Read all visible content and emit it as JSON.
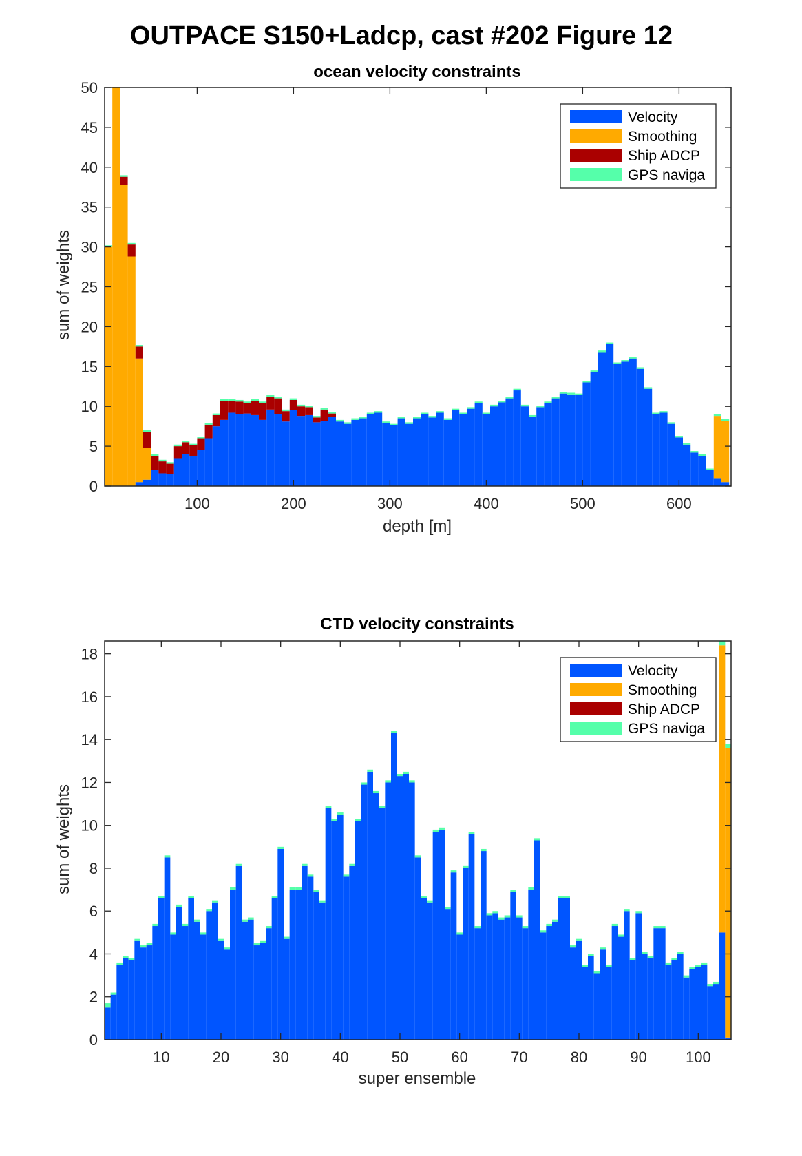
{
  "figure_title": "OUTPACE S150+Ladcp, cast #202  Figure 12",
  "chart_data": [
    {
      "type": "bar",
      "stacked": true,
      "title": "ocean velocity constraints",
      "xlabel": "depth [m]",
      "ylabel": "sum of weights",
      "xlim": [
        4,
        654
      ],
      "ylim": [
        0,
        50
      ],
      "xticks": [
        100,
        200,
        300,
        400,
        500,
        600
      ],
      "yticks": [
        0,
        5,
        10,
        15,
        20,
        25,
        30,
        35,
        40,
        45,
        50
      ],
      "legend": {
        "placement": "top-right",
        "entries": [
          "Velocity",
          "Smoothing",
          "Ship ADCP",
          "GPS naviga"
        ]
      },
      "colors": {
        "Velocity": "#0055ff",
        "Smoothing": "#ffaa00",
        "Ship ADCP": "#aa0000",
        "GPS naviga": "#55ffaa"
      },
      "bin_width": 8,
      "x": [
        8,
        16,
        24,
        32,
        40,
        48,
        56,
        64,
        72,
        80,
        88,
        96,
        104,
        112,
        120,
        128,
        136,
        144,
        152,
        160,
        168,
        176,
        184,
        192,
        200,
        208,
        216,
        224,
        232,
        240,
        248,
        256,
        264,
        272,
        280,
        288,
        296,
        304,
        312,
        320,
        328,
        336,
        344,
        352,
        360,
        368,
        376,
        384,
        392,
        400,
        408,
        416,
        424,
        432,
        440,
        448,
        456,
        464,
        472,
        480,
        488,
        496,
        504,
        512,
        520,
        528,
        536,
        544,
        552,
        560,
        568,
        576,
        584,
        592,
        600,
        608,
        616,
        624,
        632,
        640,
        648
      ],
      "series": [
        {
          "name": "Velocity",
          "values": [
            0,
            0,
            0,
            0,
            0.5,
            0.8,
            2.0,
            1.6,
            1.5,
            3.5,
            4.0,
            3.8,
            4.5,
            6.0,
            7.5,
            8.3,
            9.2,
            9.0,
            9.1,
            8.9,
            8.3,
            9.6,
            9.0,
            8.1,
            9.5,
            8.8,
            8.9,
            8.0,
            8.2,
            8.7,
            8.1,
            7.8,
            8.3,
            8.5,
            9.0,
            9.2,
            7.9,
            7.6,
            8.5,
            7.8,
            8.5,
            9.0,
            8.6,
            9.2,
            8.3,
            9.5,
            9.0,
            9.7,
            10.4,
            9.0,
            10.0,
            10.5,
            11.0,
            12.0,
            10.0,
            8.7,
            9.9,
            10.4,
            11.0,
            11.6,
            11.5,
            11.4,
            13.0,
            14.3,
            16.8,
            17.8,
            15.3,
            15.6,
            16.0,
            14.7,
            12.2,
            9.0,
            9.2,
            7.8,
            6.1,
            5.2,
            4.2,
            3.8,
            2.0,
            1.0,
            0.5
          ]
        },
        {
          "name": "Smoothing",
          "values": [
            30.0,
            50.0,
            37.8,
            28.8,
            15.5,
            4.0,
            0,
            0,
            0,
            0,
            0,
            0,
            0,
            0,
            0,
            0,
            0,
            0,
            0,
            0,
            0,
            0,
            0,
            0,
            0,
            0,
            0,
            0,
            0,
            0,
            0,
            0,
            0,
            0,
            0,
            0,
            0,
            0,
            0,
            0,
            0,
            0,
            0,
            0,
            0,
            0,
            0,
            0,
            0,
            0,
            0,
            0,
            0,
            0,
            0,
            0,
            0,
            0,
            0,
            0,
            0,
            0,
            0,
            0,
            0,
            0,
            0,
            0,
            0,
            0,
            0,
            0,
            0,
            0,
            0,
            0,
            0,
            0,
            0,
            7.8,
            7.7
          ]
        },
        {
          "name": "Ship ADCP",
          "values": [
            0,
            0,
            1.0,
            1.5,
            1.5,
            2.0,
            1.8,
            1.5,
            1.3,
            1.5,
            1.5,
            1.3,
            1.5,
            1.7,
            1.4,
            2.4,
            1.5,
            1.6,
            1.3,
            1.8,
            2.1,
            1.6,
            2.0,
            1.3,
            1.3,
            1.2,
            1.0,
            0.6,
            1.4,
            0.4,
            0,
            0,
            0,
            0,
            0,
            0,
            0,
            0,
            0,
            0,
            0,
            0,
            0,
            0,
            0,
            0,
            0,
            0,
            0,
            0,
            0,
            0,
            0,
            0,
            0,
            0,
            0,
            0,
            0,
            0,
            0,
            0,
            0,
            0,
            0,
            0,
            0,
            0,
            0,
            0,
            0,
            0,
            0,
            0,
            0,
            0,
            0,
            0,
            0,
            0,
            0
          ]
        },
        {
          "name": "GPS naviga",
          "values": [
            0.2,
            0.2,
            0.2,
            0.2,
            0.2,
            0.2,
            0.2,
            0.2,
            0.2,
            0.2,
            0.2,
            0.2,
            0.2,
            0.2,
            0.2,
            0.2,
            0.2,
            0.2,
            0.2,
            0.2,
            0.2,
            0.2,
            0.2,
            0.2,
            0.2,
            0.2,
            0.2,
            0.2,
            0.2,
            0.2,
            0.2,
            0.2,
            0.2,
            0.2,
            0.2,
            0.2,
            0.2,
            0.2,
            0.2,
            0.2,
            0.2,
            0.2,
            0.2,
            0.2,
            0.2,
            0.2,
            0.2,
            0.2,
            0.2,
            0.2,
            0.2,
            0.2,
            0.2,
            0.2,
            0.2,
            0.2,
            0.2,
            0.2,
            0.2,
            0.2,
            0.2,
            0.2,
            0.2,
            0.2,
            0.2,
            0.2,
            0.2,
            0.2,
            0.2,
            0.2,
            0.2,
            0.2,
            0.2,
            0.2,
            0.2,
            0.2,
            0.2,
            0.2,
            0.2,
            0.2,
            0.2
          ]
        }
      ]
    },
    {
      "type": "bar",
      "stacked": true,
      "title": "CTD velocity constraints",
      "xlabel": "super ensemble",
      "ylabel": "sum of weights",
      "xlim": [
        0.5,
        105.5
      ],
      "ylim": [
        0,
        18.6
      ],
      "xticks": [
        10,
        20,
        30,
        40,
        50,
        60,
        70,
        80,
        90,
        100
      ],
      "yticks": [
        0,
        2,
        4,
        6,
        8,
        10,
        12,
        14,
        16,
        18
      ],
      "legend": {
        "placement": "top-right",
        "entries": [
          "Velocity",
          "Smoothing",
          "Ship ADCP",
          "GPS naviga"
        ]
      },
      "colors": {
        "Velocity": "#0055ff",
        "Smoothing": "#ffaa00",
        "Ship ADCP": "#aa0000",
        "GPS naviga": "#55ffaa"
      },
      "bin_width": 1,
      "x": [
        1,
        2,
        3,
        4,
        5,
        6,
        7,
        8,
        9,
        10,
        11,
        12,
        13,
        14,
        15,
        16,
        17,
        18,
        19,
        20,
        21,
        22,
        23,
        24,
        25,
        26,
        27,
        28,
        29,
        30,
        31,
        32,
        33,
        34,
        35,
        36,
        37,
        38,
        39,
        40,
        41,
        42,
        43,
        44,
        45,
        46,
        47,
        48,
        49,
        50,
        51,
        52,
        53,
        54,
        55,
        56,
        57,
        58,
        59,
        60,
        61,
        62,
        63,
        64,
        65,
        66,
        67,
        68,
        69,
        70,
        71,
        72,
        73,
        74,
        75,
        76,
        77,
        78,
        79,
        80,
        81,
        82,
        83,
        84,
        85,
        86,
        87,
        88,
        89,
        90,
        91,
        92,
        93,
        94,
        95,
        96,
        97,
        98,
        99,
        100,
        101,
        102,
        103,
        104,
        105
      ],
      "series": [
        {
          "name": "Velocity",
          "values": [
            1.5,
            2.1,
            3.5,
            3.8,
            3.7,
            4.6,
            4.3,
            4.4,
            5.3,
            6.6,
            8.5,
            4.9,
            6.2,
            5.3,
            6.6,
            5.5,
            4.9,
            6.0,
            6.4,
            4.6,
            4.2,
            7.0,
            8.1,
            5.5,
            5.6,
            4.4,
            4.5,
            5.2,
            6.6,
            8.9,
            4.7,
            7.0,
            7.0,
            8.1,
            7.6,
            6.9,
            6.4,
            10.8,
            10.2,
            10.5,
            7.6,
            8.1,
            10.2,
            11.9,
            12.5,
            11.5,
            10.8,
            12.0,
            14.3,
            12.3,
            12.4,
            12.0,
            8.5,
            6.6,
            6.4,
            9.7,
            9.8,
            6.1,
            7.8,
            4.9,
            8.0,
            9.6,
            5.2,
            8.8,
            5.8,
            5.9,
            5.6,
            5.7,
            6.9,
            5.7,
            5.2,
            7.0,
            9.3,
            5.0,
            5.3,
            5.5,
            6.6,
            6.6,
            4.3,
            4.6,
            3.4,
            3.9,
            3.1,
            4.2,
            3.4,
            5.3,
            4.8,
            6.0,
            3.7,
            5.9,
            4.0,
            3.8,
            5.2,
            5.2,
            3.5,
            3.7,
            4.0,
            2.9,
            3.3,
            3.4,
            3.5,
            2.5,
            2.6,
            5.0,
            0.1
          ]
        },
        {
          "name": "Smoothing",
          "values": [
            0,
            0,
            0,
            0,
            0,
            0,
            0,
            0,
            0,
            0,
            0,
            0,
            0,
            0,
            0,
            0,
            0,
            0,
            0,
            0,
            0,
            0,
            0,
            0,
            0,
            0,
            0,
            0,
            0,
            0,
            0,
            0,
            0,
            0,
            0,
            0,
            0,
            0,
            0,
            0,
            0,
            0,
            0,
            0,
            0,
            0,
            0,
            0,
            0,
            0,
            0,
            0,
            0,
            0,
            0,
            0,
            0,
            0,
            0,
            0,
            0,
            0,
            0,
            0,
            0,
            0,
            0,
            0,
            0,
            0,
            0,
            0,
            0,
            0,
            0,
            0,
            0,
            0,
            0,
            0,
            0,
            0,
            0,
            0,
            0,
            0,
            0,
            0,
            0,
            0,
            0,
            0,
            0,
            0,
            0,
            0,
            0,
            0,
            0,
            0,
            0,
            0,
            0,
            13.4,
            13.5
          ]
        },
        {
          "name": "Ship ADCP",
          "values": [
            0,
            0,
            0,
            0,
            0,
            0,
            0,
            0,
            0,
            0,
            0,
            0,
            0,
            0,
            0,
            0,
            0,
            0,
            0,
            0,
            0,
            0,
            0,
            0,
            0,
            0,
            0,
            0,
            0,
            0,
            0,
            0,
            0,
            0,
            0,
            0,
            0,
            0,
            0,
            0,
            0,
            0,
            0,
            0,
            0,
            0,
            0,
            0,
            0,
            0,
            0,
            0,
            0,
            0,
            0,
            0,
            0,
            0,
            0,
            0,
            0,
            0,
            0,
            0,
            0,
            0,
            0,
            0,
            0,
            0,
            0,
            0,
            0,
            0,
            0,
            0,
            0,
            0,
            0,
            0,
            0,
            0,
            0,
            0,
            0,
            0,
            0,
            0,
            0,
            0,
            0,
            0,
            0,
            0,
            0,
            0,
            0,
            0,
            0,
            0,
            0,
            0,
            0,
            0,
            0
          ]
        },
        {
          "name": "GPS naviga",
          "values": [
            0.2,
            0.1,
            0.1,
            0.1,
            0.1,
            0.1,
            0.1,
            0.1,
            0.1,
            0.1,
            0.1,
            0.1,
            0.1,
            0.1,
            0.1,
            0.1,
            0.1,
            0.1,
            0.1,
            0.1,
            0.1,
            0.1,
            0.1,
            0.1,
            0.1,
            0.1,
            0.1,
            0.1,
            0.1,
            0.1,
            0.1,
            0.1,
            0.1,
            0.1,
            0.1,
            0.1,
            0.1,
            0.1,
            0.1,
            0.1,
            0.1,
            0.1,
            0.1,
            0.1,
            0.1,
            0.1,
            0.1,
            0.1,
            0.1,
            0.1,
            0.1,
            0.1,
            0.1,
            0.1,
            0.1,
            0.1,
            0.1,
            0.1,
            0.1,
            0.1,
            0.1,
            0.1,
            0.1,
            0.1,
            0.1,
            0.1,
            0.1,
            0.1,
            0.1,
            0.1,
            0.1,
            0.1,
            0.1,
            0.1,
            0.1,
            0.1,
            0.1,
            0.1,
            0.1,
            0.1,
            0.1,
            0.1,
            0.1,
            0.1,
            0.1,
            0.1,
            0.1,
            0.1,
            0.1,
            0.1,
            0.1,
            0.1,
            0.1,
            0.1,
            0.1,
            0.1,
            0.1,
            0.1,
            0.1,
            0.1,
            0.1,
            0.1,
            0.1,
            0.2,
            0.2
          ]
        }
      ]
    }
  ]
}
